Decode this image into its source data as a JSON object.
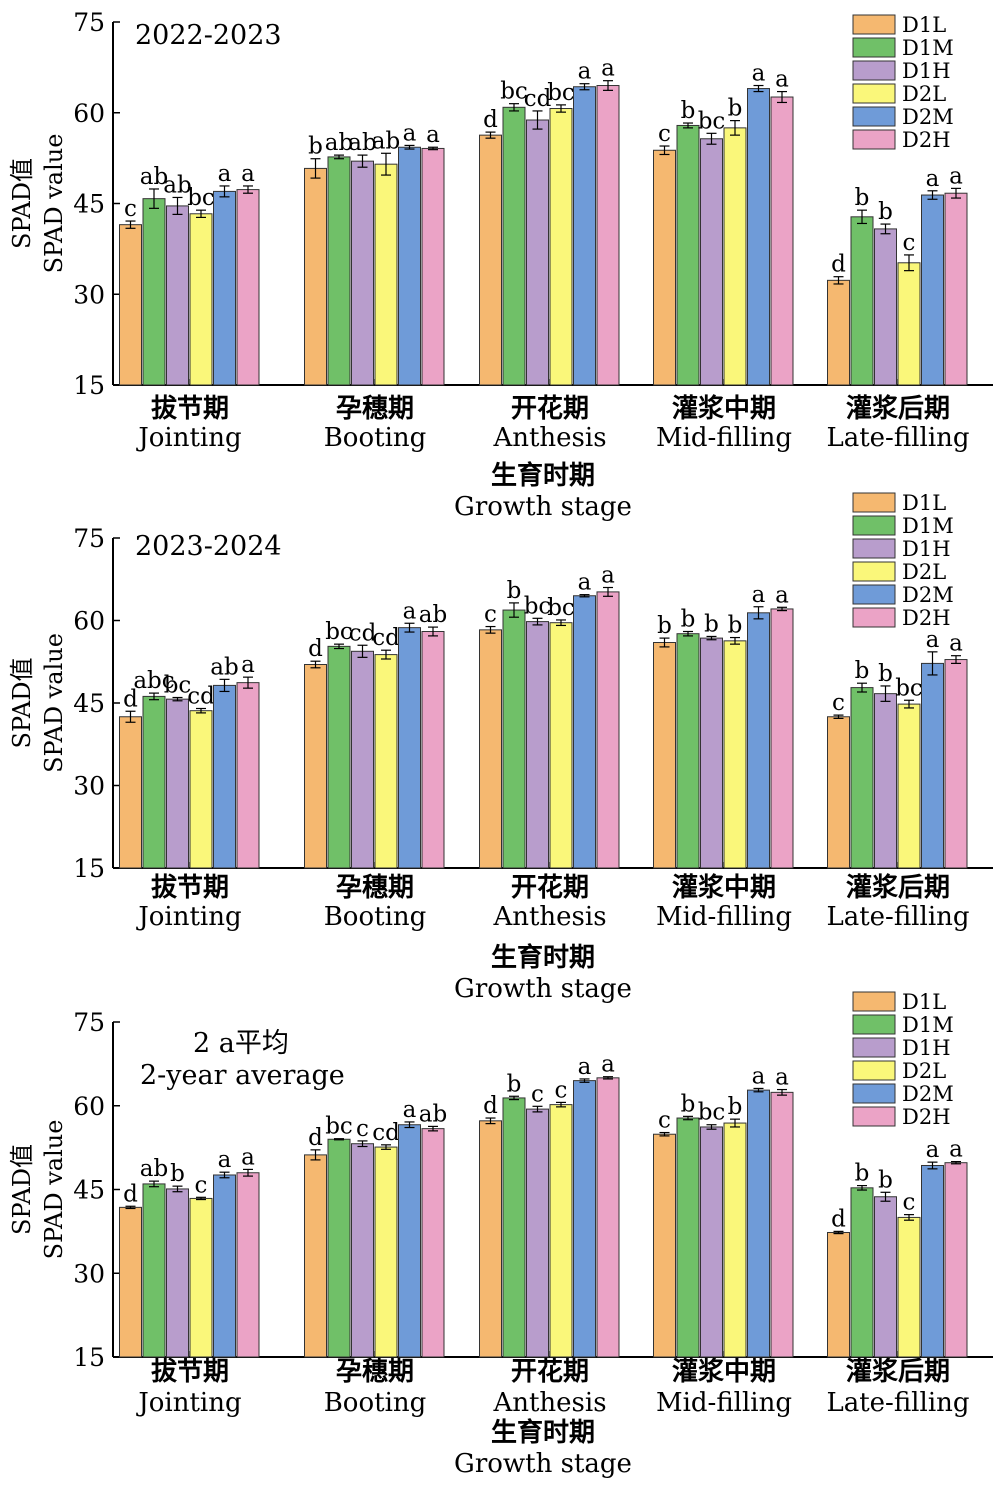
{
  "chart_data": [
    {
      "type": "bar",
      "title": "2022-2023",
      "ylabel_cn": "SPAD值",
      "ylabel_en": "SPAD value",
      "xlabel_cn": "生育时期",
      "xlabel_en": "Growth stage",
      "ylim": [
        15,
        75
      ],
      "yticks": [
        15,
        30,
        45,
        60,
        75
      ],
      "categories_cn": [
        "拔节期",
        "孕穗期",
        "开花期",
        "灌浆中期",
        "灌浆后期"
      ],
      "categories_en": [
        "Jointing",
        "Booting",
        "Anthesis",
        "Mid-filling",
        "Late-filling"
      ],
      "legend_position": "top-right",
      "series": [
        {
          "name": "D1L",
          "color": "#F5B870",
          "values": [
            41.5,
            50.8,
            56.3,
            53.8,
            32.3
          ],
          "errors": [
            0.6,
            1.6,
            0.5,
            0.7,
            0.6
          ],
          "letters": [
            "c",
            "b",
            "d",
            "c",
            "d"
          ]
        },
        {
          "name": "D1M",
          "color": "#70C068",
          "values": [
            45.8,
            52.7,
            60.9,
            57.9,
            42.8
          ],
          "errors": [
            1.6,
            0.3,
            0.6,
            0.4,
            1.1
          ],
          "letters": [
            "ab",
            "ab",
            "bc",
            "b",
            "b"
          ]
        },
        {
          "name": "D1H",
          "color": "#B89DCC",
          "values": [
            44.6,
            52.0,
            58.8,
            55.7,
            40.8
          ],
          "errors": [
            1.4,
            1.0,
            1.5,
            0.9,
            0.8
          ],
          "letters": [
            "ab",
            "ab",
            "cd",
            "bc",
            "b"
          ]
        },
        {
          "name": "D2L",
          "color": "#FAF77A",
          "values": [
            43.3,
            51.5,
            60.7,
            57.5,
            35.2
          ],
          "errors": [
            0.6,
            1.8,
            0.6,
            1.2,
            1.3
          ],
          "letters": [
            "bc",
            "ab",
            "bc",
            "b",
            "c"
          ]
        },
        {
          "name": "D2M",
          "color": "#6F9BD8",
          "values": [
            47.0,
            54.3,
            64.3,
            64.0,
            46.4
          ],
          "errors": [
            0.9,
            0.3,
            0.5,
            0.5,
            0.7
          ],
          "letters": [
            "a",
            "a",
            "a",
            "a",
            "a"
          ]
        },
        {
          "name": "D2H",
          "color": "#EBA3C6",
          "values": [
            47.3,
            54.1,
            64.5,
            62.6,
            46.7
          ],
          "errors": [
            0.6,
            0.2,
            0.8,
            0.9,
            0.8
          ],
          "letters": [
            "a",
            "a",
            "a",
            "a",
            "a"
          ]
        }
      ]
    },
    {
      "type": "bar",
      "title": "2023-2024",
      "ylabel_cn": "SPAD值",
      "ylabel_en": "SPAD value",
      "xlabel_cn": "生育时期",
      "xlabel_en": "Growth stage",
      "ylim": [
        15,
        75
      ],
      "yticks": [
        15,
        30,
        45,
        60,
        75
      ],
      "categories_cn": [
        "拔节期",
        "孕穗期",
        "开花期",
        "灌浆中期",
        "灌浆后期"
      ],
      "categories_en": [
        "Jointing",
        "Booting",
        "Anthesis",
        "Mid-filling",
        "Late-filling"
      ],
      "legend_position": "top-right",
      "series": [
        {
          "name": "D1L",
          "color": "#F5B870",
          "values": [
            42.5,
            52.0,
            58.3,
            56.0,
            42.5
          ],
          "errors": [
            1.0,
            0.6,
            0.6,
            0.8,
            0.3
          ],
          "letters": [
            "d",
            "d",
            "c",
            "b",
            "c"
          ]
        },
        {
          "name": "D1M",
          "color": "#70C068",
          "values": [
            46.2,
            55.3,
            61.9,
            57.6,
            47.8
          ],
          "errors": [
            0.6,
            0.4,
            1.3,
            0.4,
            0.8
          ],
          "letters": [
            "abc",
            "bc",
            "b",
            "b",
            "b"
          ]
        },
        {
          "name": "D1H",
          "color": "#B89DCC",
          "values": [
            45.7,
            54.4,
            59.8,
            56.8,
            46.7
          ],
          "errors": [
            0.3,
            1.1,
            0.6,
            0.3,
            1.4
          ],
          "letters": [
            "bc",
            "cd",
            "bc",
            "b",
            "b"
          ]
        },
        {
          "name": "D2L",
          "color": "#FAF77A",
          "values": [
            43.6,
            53.8,
            59.6,
            56.3,
            44.8
          ],
          "errors": [
            0.4,
            0.8,
            0.5,
            0.6,
            0.7
          ],
          "letters": [
            "cd",
            "cd",
            "bc",
            "b",
            "bc"
          ]
        },
        {
          "name": "D2M",
          "color": "#6F9BD8",
          "values": [
            48.2,
            58.7,
            64.5,
            61.4,
            52.2
          ],
          "errors": [
            1.1,
            0.8,
            0.2,
            1.1,
            2.1
          ],
          "letters": [
            "ab",
            "a",
            "a",
            "a",
            "a"
          ]
        },
        {
          "name": "D2H",
          "color": "#EBA3C6",
          "values": [
            48.7,
            58.0,
            65.2,
            62.1,
            52.9
          ],
          "errors": [
            1.0,
            0.8,
            0.8,
            0.3,
            0.7
          ],
          "letters": [
            "a",
            "ab",
            "a",
            "a",
            "a"
          ]
        }
      ]
    },
    {
      "type": "bar",
      "title": "2 a平均",
      "subtitle": "2-year average",
      "ylabel_cn": "SPAD值",
      "ylabel_en": "SPAD value",
      "xlabel_cn": "生育时期",
      "xlabel_en": "Growth stage",
      "ylim": [
        15,
        75
      ],
      "yticks": [
        15,
        30,
        45,
        60,
        75
      ],
      "categories_cn": [
        "拔节期",
        "孕穗期",
        "开花期",
        "灌浆中期",
        "灌浆后期"
      ],
      "categories_en": [
        "Jointing",
        "Booting",
        "Anthesis",
        "Mid-filling",
        "Late-filling"
      ],
      "legend_position": "top-right",
      "series": [
        {
          "name": "D1L",
          "color": "#F5B870",
          "values": [
            41.8,
            51.2,
            57.3,
            54.9,
            37.3
          ],
          "errors": [
            0.2,
            0.9,
            0.5,
            0.3,
            0.2
          ],
          "letters": [
            "d",
            "d",
            "d",
            "c",
            "d"
          ]
        },
        {
          "name": "D1M",
          "color": "#70C068",
          "values": [
            46.0,
            54.0,
            61.4,
            57.8,
            45.3
          ],
          "errors": [
            0.5,
            0.1,
            0.3,
            0.3,
            0.4
          ],
          "letters": [
            "ab",
            "bc",
            "b",
            "b",
            "b"
          ]
        },
        {
          "name": "D1H",
          "color": "#B89DCC",
          "values": [
            45.1,
            53.2,
            59.4,
            56.2,
            43.7
          ],
          "errors": [
            0.5,
            0.5,
            0.5,
            0.4,
            0.8
          ],
          "letters": [
            "b",
            "c",
            "c",
            "bc",
            "b"
          ]
        },
        {
          "name": "D2L",
          "color": "#FAF77A",
          "values": [
            43.4,
            52.6,
            60.2,
            56.9,
            40.0
          ],
          "errors": [
            0.2,
            0.4,
            0.4,
            0.7,
            0.5
          ],
          "letters": [
            "c",
            "cd",
            "c",
            "b",
            "c"
          ]
        },
        {
          "name": "D2M",
          "color": "#6F9BD8",
          "values": [
            47.6,
            56.6,
            64.5,
            62.8,
            49.3
          ],
          "errors": [
            0.5,
            0.5,
            0.3,
            0.3,
            0.6
          ],
          "letters": [
            "a",
            "a",
            "a",
            "a",
            "a"
          ]
        },
        {
          "name": "D2H",
          "color": "#EBA3C6",
          "values": [
            48.0,
            55.9,
            65.0,
            62.4,
            49.8
          ],
          "errors": [
            0.6,
            0.4,
            0.2,
            0.5,
            0.2
          ],
          "letters": [
            "a",
            "ab",
            "a",
            "a",
            "a"
          ]
        }
      ]
    }
  ]
}
